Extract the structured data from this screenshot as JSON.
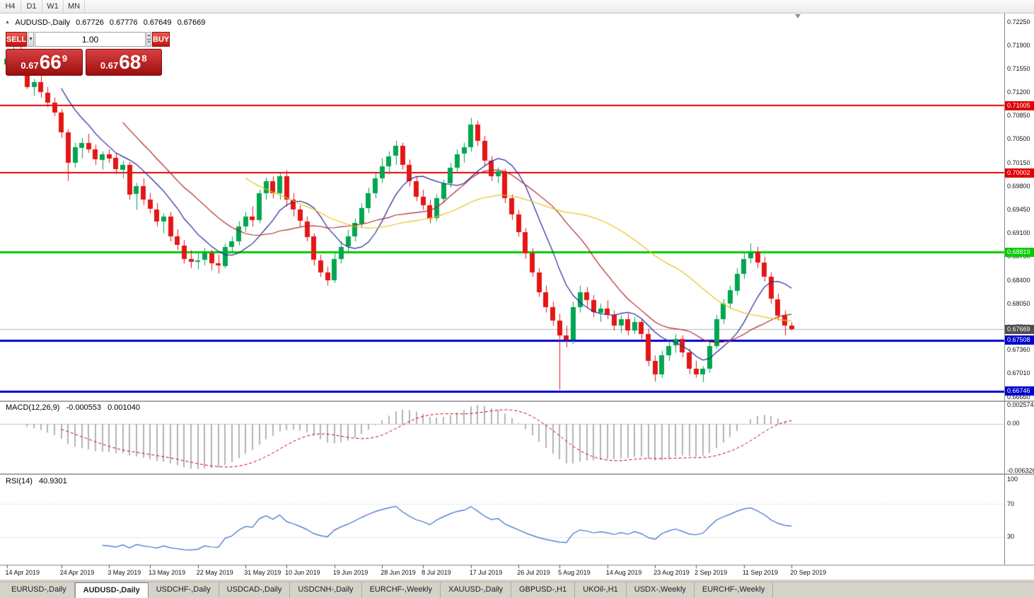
{
  "timeframe_toolbar": {
    "buttons": [
      "H4",
      "D1",
      "W1",
      "MN"
    ]
  },
  "ohlc_header": {
    "collapse_glyph": "▲",
    "symbol_period": "AUDUSD-,Daily",
    "open": "0.67726",
    "high": "0.67776",
    "low": "0.67649",
    "close": "0.67669"
  },
  "trade_panel": {
    "sell_label": "SELL",
    "buy_label": "BUY",
    "volume": "1.00",
    "combo_glyph": "▼",
    "spin_up_glyph": "▲",
    "spin_down_glyph": "▼",
    "bid": {
      "prefix": "0.67",
      "big": "66",
      "sup": "9"
    },
    "ask": {
      "prefix": "0.67",
      "big": "68",
      "sup": "8"
    }
  },
  "bottom_tabs": {
    "active_index": 1,
    "items": [
      "EURUSD-,Daily",
      "AUDUSD-,Daily",
      "USDCHF-,Daily",
      "USDCAD-,Daily",
      "USDCNH-,Daily",
      "EURCHF-,Weekly",
      "XAUUSD-,Daily",
      "GBPUSD-,H1",
      "UKOil-,H1",
      "USDX-,Weekly",
      "EURCHF-,Weekly"
    ]
  },
  "chart_data": [
    {
      "type": "candlestick",
      "title": "AUDUSD- Daily",
      "ylim": [
        0.66607,
        0.72377
      ],
      "up_color": "#00a650",
      "down_color": "#e41616",
      "y_ticks": [
        "0.72250",
        "0.71900",
        "0.71550",
        "0.71200",
        "0.70850",
        "0.70500",
        "0.70150",
        "0.69800",
        "0.69450",
        "0.69100",
        "0.68750",
        "0.68400",
        "0.68050",
        "0.67700",
        "0.67360",
        "0.67010",
        "0.66660"
      ],
      "x_labels": [
        {
          "bar": 0,
          "label": "14 Apr 2019"
        },
        {
          "bar": 8,
          "label": "24 Apr 2019"
        },
        {
          "bar": 15,
          "label": "3 May 2019"
        },
        {
          "bar": 21,
          "label": "13 May 2019"
        },
        {
          "bar": 28,
          "label": "22 May 2019"
        },
        {
          "bar": 35,
          "label": "31 May 2019"
        },
        {
          "bar": 41,
          "label": "10 Jun 2019"
        },
        {
          "bar": 48,
          "label": "19 Jun 2019"
        },
        {
          "bar": 55,
          "label": "28 Jun 2019"
        },
        {
          "bar": 61,
          "label": "8 Jul 2019"
        },
        {
          "bar": 68,
          "label": "17 Jul 2019"
        },
        {
          "bar": 75,
          "label": "26 Jul 2019"
        },
        {
          "bar": 81,
          "label": "5 Aug 2019"
        },
        {
          "bar": 88,
          "label": "14 Aug 2019"
        },
        {
          "bar": 95,
          "label": "23 Aug 2019"
        },
        {
          "bar": 101,
          "label": "2 Sep 2019"
        },
        {
          "bar": 108,
          "label": "11 Sep 2019"
        },
        {
          "bar": 115,
          "label": "20 Sep 2019"
        }
      ],
      "hlines": [
        {
          "value": 0.71005,
          "label": "0.71005",
          "color": "#e00000",
          "width": 2
        },
        {
          "value": 0.70002,
          "label": "0.70002",
          "color": "#e00000",
          "width": 2
        },
        {
          "value": 0.68819,
          "label": "0.68819",
          "color": "#00cc00",
          "width": 3
        },
        {
          "value": 0.67508,
          "label": "0.67508",
          "color": "#0000cd",
          "width": 3
        },
        {
          "value": 0.66746,
          "label": "0.66746",
          "color": "#0000cd",
          "width": 3
        }
      ],
      "price_line": {
        "value": 0.67669,
        "label": "0.67669",
        "line_color": "#b4b4b4",
        "label_bg": "#4f4f4f"
      },
      "moving_averages": [
        {
          "period": 9,
          "color": "#28289a"
        },
        {
          "period": 18,
          "color": "#b22828"
        },
        {
          "period": 36,
          "color": "#e6c619"
        }
      ],
      "ohlc": [
        [
          0.7162,
          0.7175,
          0.715,
          0.717
        ],
        [
          0.717,
          0.719,
          0.716,
          0.7172
        ],
        [
          0.7172,
          0.7196,
          0.715,
          0.7155
        ],
        [
          0.7155,
          0.716,
          0.7125,
          0.7128
        ],
        [
          0.7128,
          0.714,
          0.7115,
          0.7135
        ],
        [
          0.7135,
          0.7145,
          0.7112,
          0.712
        ],
        [
          0.712,
          0.7128,
          0.7098,
          0.7105
        ],
        [
          0.7105,
          0.7112,
          0.7085,
          0.709
        ],
        [
          0.709,
          0.7095,
          0.7052,
          0.706
        ],
        [
          0.706,
          0.7065,
          0.6988,
          0.7015
        ],
        [
          0.7015,
          0.7045,
          0.7008,
          0.7038
        ],
        [
          0.7038,
          0.7052,
          0.7022,
          0.7045
        ],
        [
          0.7045,
          0.7058,
          0.703,
          0.7035
        ],
        [
          0.7035,
          0.7042,
          0.7012,
          0.702
        ],
        [
          0.702,
          0.7032,
          0.7005,
          0.7028
        ],
        [
          0.7028,
          0.7035,
          0.7015,
          0.7022
        ],
        [
          0.7022,
          0.703,
          0.6998,
          0.7005
        ],
        [
          0.7005,
          0.7018,
          0.6992,
          0.7012
        ],
        [
          0.7012,
          0.7016,
          0.696,
          0.6968
        ],
        [
          0.6968,
          0.6985,
          0.6945,
          0.698
        ],
        [
          0.698,
          0.6992,
          0.6952,
          0.696
        ],
        [
          0.696,
          0.697,
          0.694,
          0.6946
        ],
        [
          0.6946,
          0.6955,
          0.692,
          0.6928
        ],
        [
          0.6928,
          0.694,
          0.691,
          0.6935
        ],
        [
          0.6935,
          0.6942,
          0.6898,
          0.6905
        ],
        [
          0.6905,
          0.6916,
          0.6885,
          0.6892
        ],
        [
          0.6892,
          0.69,
          0.6865,
          0.6872
        ],
        [
          0.6872,
          0.6885,
          0.6858,
          0.6868
        ],
        [
          0.6868,
          0.688,
          0.6856,
          0.687
        ],
        [
          0.687,
          0.6888,
          0.6862,
          0.688
        ],
        [
          0.688,
          0.6885,
          0.6855,
          0.6865
        ],
        [
          0.6865,
          0.6878,
          0.685,
          0.6862
        ],
        [
          0.6862,
          0.6895,
          0.6858,
          0.689
        ],
        [
          0.689,
          0.6905,
          0.6882,
          0.6898
        ],
        [
          0.6898,
          0.6928,
          0.6892,
          0.692
        ],
        [
          0.692,
          0.6942,
          0.6912,
          0.6935
        ],
        [
          0.6935,
          0.695,
          0.692,
          0.693
        ],
        [
          0.693,
          0.6975,
          0.6925,
          0.697
        ],
        [
          0.697,
          0.6993,
          0.696,
          0.6988
        ],
        [
          0.6988,
          0.6995,
          0.6962,
          0.697
        ],
        [
          0.697,
          0.7,
          0.696,
          0.6995
        ],
        [
          0.6995,
          0.7004,
          0.695,
          0.696
        ],
        [
          0.696,
          0.697,
          0.6935,
          0.6945
        ],
        [
          0.6945,
          0.6952,
          0.692,
          0.6928
        ],
        [
          0.6928,
          0.6935,
          0.6898,
          0.6905
        ],
        [
          0.6905,
          0.691,
          0.6862,
          0.687
        ],
        [
          0.687,
          0.6878,
          0.6845,
          0.6852
        ],
        [
          0.6852,
          0.686,
          0.6832,
          0.684
        ],
        [
          0.684,
          0.688,
          0.6836,
          0.6872
        ],
        [
          0.6872,
          0.6898,
          0.6865,
          0.689
        ],
        [
          0.689,
          0.6915,
          0.6882,
          0.6905
        ],
        [
          0.6905,
          0.6932,
          0.6898,
          0.6925
        ],
        [
          0.6925,
          0.6955,
          0.6918,
          0.6948
        ],
        [
          0.6948,
          0.6978,
          0.694,
          0.697
        ],
        [
          0.697,
          0.7,
          0.6962,
          0.6992
        ],
        [
          0.6992,
          0.7022,
          0.6985,
          0.701
        ],
        [
          0.701,
          0.7032,
          0.6998,
          0.7025
        ],
        [
          0.7025,
          0.7048,
          0.7012,
          0.704
        ],
        [
          0.704,
          0.7045,
          0.7005,
          0.7012
        ],
        [
          0.7012,
          0.702,
          0.698,
          0.6988
        ],
        [
          0.6988,
          0.6995,
          0.6958,
          0.6965
        ],
        [
          0.6965,
          0.6975,
          0.6945,
          0.6952
        ],
        [
          0.6952,
          0.696,
          0.6925,
          0.6932
        ],
        [
          0.6932,
          0.6968,
          0.6928,
          0.6962
        ],
        [
          0.6962,
          0.699,
          0.6955,
          0.6985
        ],
        [
          0.6985,
          0.7015,
          0.6978,
          0.7008
        ],
        [
          0.7008,
          0.7035,
          0.7,
          0.7028
        ],
        [
          0.7028,
          0.7045,
          0.7015,
          0.7038
        ],
        [
          0.7038,
          0.7082,
          0.7032,
          0.7072
        ],
        [
          0.7072,
          0.7078,
          0.704,
          0.7048
        ],
        [
          0.7048,
          0.7055,
          0.701,
          0.7018
        ],
        [
          0.7018,
          0.7025,
          0.6988,
          0.6995
        ],
        [
          0.6995,
          0.7008,
          0.6985,
          0.7002
        ],
        [
          0.7002,
          0.7006,
          0.6955,
          0.6962
        ],
        [
          0.6962,
          0.6968,
          0.693,
          0.6938
        ],
        [
          0.6938,
          0.6945,
          0.6905,
          0.6912
        ],
        [
          0.6912,
          0.6918,
          0.6872,
          0.688
        ],
        [
          0.688,
          0.6888,
          0.6845,
          0.6852
        ],
        [
          0.6852,
          0.6858,
          0.6815,
          0.6822
        ],
        [
          0.6822,
          0.6832,
          0.6792,
          0.68
        ],
        [
          0.68,
          0.6808,
          0.6772,
          0.678
        ],
        [
          0.678,
          0.679,
          0.6677,
          0.6758
        ],
        [
          0.6758,
          0.6772,
          0.674,
          0.6752
        ],
        [
          0.6752,
          0.6808,
          0.6745,
          0.68
        ],
        [
          0.68,
          0.6832,
          0.6792,
          0.6822
        ],
        [
          0.6822,
          0.683,
          0.68,
          0.681
        ],
        [
          0.681,
          0.6818,
          0.6785,
          0.6792
        ],
        [
          0.6792,
          0.6805,
          0.6778,
          0.6798
        ],
        [
          0.6798,
          0.681,
          0.6782,
          0.6788
        ],
        [
          0.6788,
          0.6795,
          0.6765,
          0.6772
        ],
        [
          0.6772,
          0.6788,
          0.6762,
          0.6782
        ],
        [
          0.6782,
          0.679,
          0.6758,
          0.6765
        ],
        [
          0.6765,
          0.6785,
          0.676,
          0.6778
        ],
        [
          0.6778,
          0.6782,
          0.6752,
          0.676
        ],
        [
          0.676,
          0.6768,
          0.6712,
          0.672
        ],
        [
          0.672,
          0.6728,
          0.6689,
          0.67
        ],
        [
          0.67,
          0.6735,
          0.6695,
          0.6728
        ],
        [
          0.6728,
          0.675,
          0.672,
          0.6742
        ],
        [
          0.6742,
          0.676,
          0.6732,
          0.6752
        ],
        [
          0.6752,
          0.6758,
          0.6725,
          0.6732
        ],
        [
          0.6732,
          0.6738,
          0.67,
          0.6708
        ],
        [
          0.6708,
          0.672,
          0.6695,
          0.67
        ],
        [
          0.67,
          0.6712,
          0.6688,
          0.6708
        ],
        [
          0.6708,
          0.6748,
          0.6702,
          0.6742
        ],
        [
          0.6742,
          0.6788,
          0.6738,
          0.6782
        ],
        [
          0.6782,
          0.6812,
          0.6775,
          0.6805
        ],
        [
          0.6805,
          0.6832,
          0.6798,
          0.6825
        ],
        [
          0.6825,
          0.6858,
          0.6818,
          0.685
        ],
        [
          0.685,
          0.688,
          0.6842,
          0.6872
        ],
        [
          0.6872,
          0.6895,
          0.6865,
          0.6882
        ],
        [
          0.6882,
          0.689,
          0.6858,
          0.6866
        ],
        [
          0.6866,
          0.6875,
          0.6838,
          0.6845
        ],
        [
          0.6845,
          0.6852,
          0.6805,
          0.6812
        ],
        [
          0.6812,
          0.682,
          0.678,
          0.6788
        ],
        [
          0.6788,
          0.6795,
          0.6758,
          0.67726
        ],
        [
          0.67726,
          0.67776,
          0.67649,
          0.67669
        ]
      ]
    },
    {
      "type": "macd",
      "name": "MACD(12,26,9)",
      "value_main": "-0.000553",
      "value_signal": "0.001040",
      "fast": 12,
      "slow": 26,
      "signal": 9,
      "ylim": [
        -0.0063265,
        0.0025745
      ],
      "y_ticks": [
        {
          "label": "0.0025745",
          "value": 0.0025745
        },
        {
          "label": "0.00",
          "value": 0
        },
        {
          "label": "-0.0063265",
          "value": -0.0063265
        }
      ],
      "histogram_color": "#b4b4b4",
      "signal_color": "#d00000",
      "zero_line_color": "#c8c8c8"
    },
    {
      "type": "rsi",
      "name": "RSI(14)",
      "value": "40.9301",
      "period": 14,
      "ylim": [
        0,
        100
      ],
      "levels": [
        70,
        30
      ],
      "y_ticks": [
        {
          "label": "100",
          "value": 100
        },
        {
          "label": "70",
          "value": 70
        },
        {
          "label": "30",
          "value": 30
        }
      ],
      "line_color": "#3a6fc8",
      "level_color": "#c0c0c0"
    }
  ]
}
